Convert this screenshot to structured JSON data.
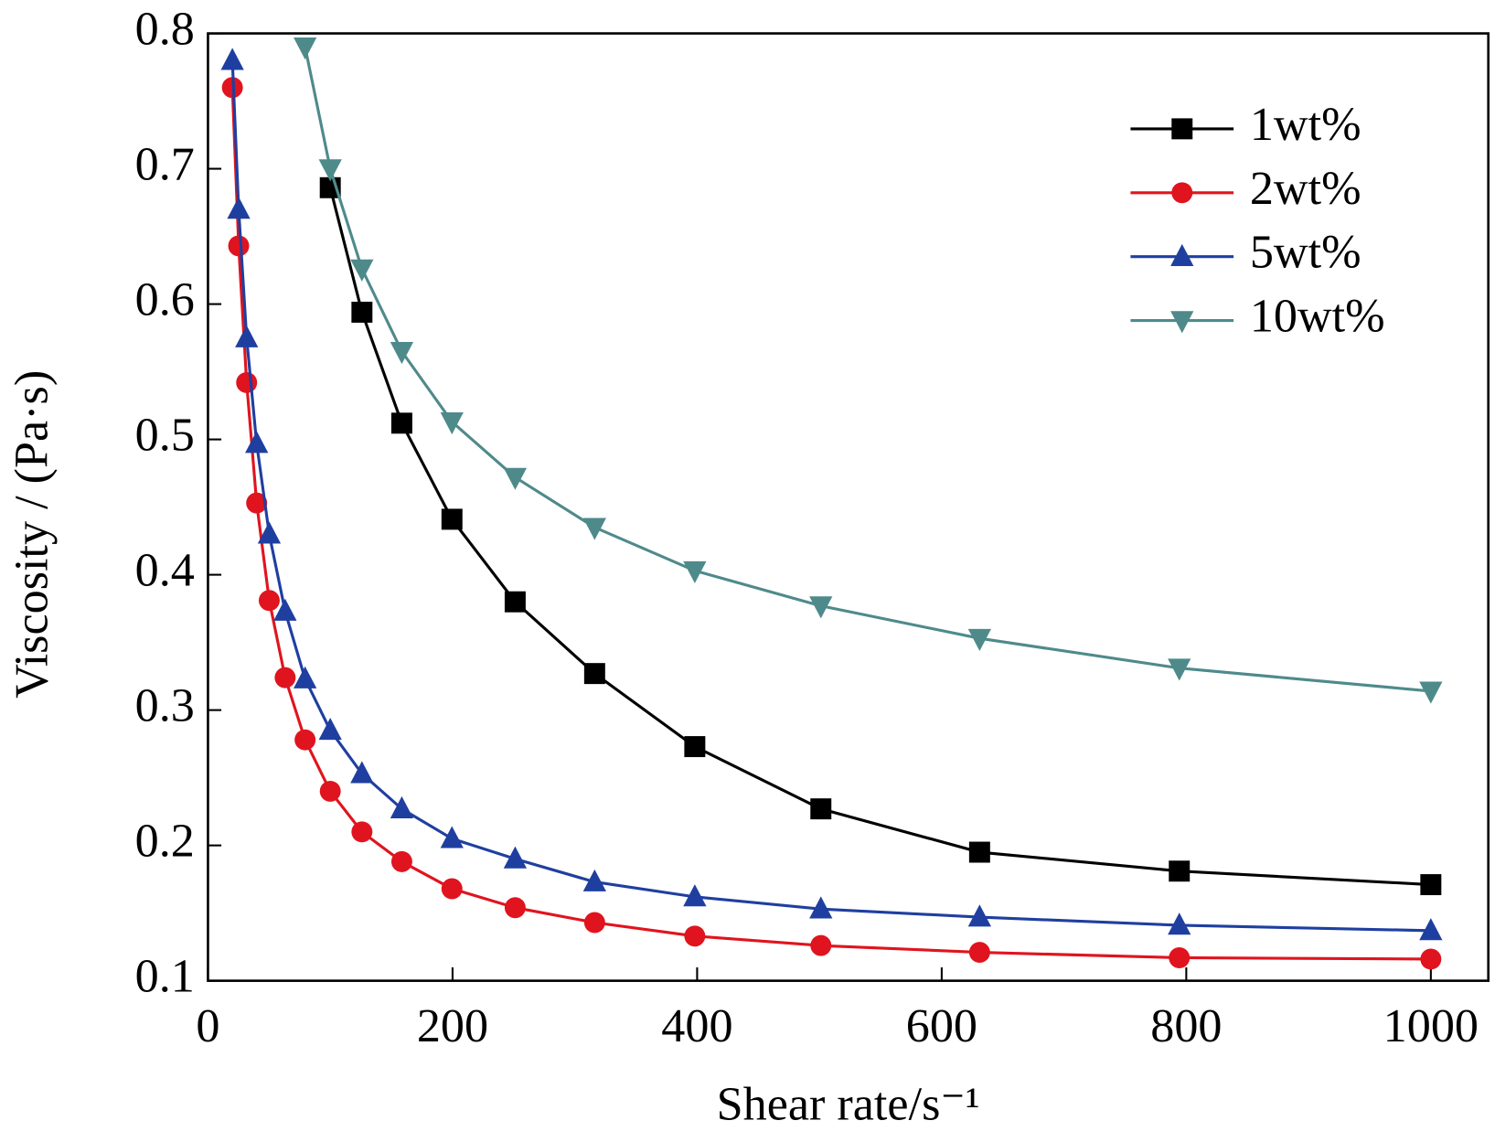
{
  "chart_data": {
    "type": "line",
    "x_label": "Shear rate/s⁻¹",
    "y_label": "Viscosity / (Pa·s)",
    "x": [
      19.95,
      25.1,
      31.6,
      39.8,
      50.1,
      63.1,
      79.4,
      100,
      125.9,
      158.5,
      199.5,
      251.2,
      316.2,
      398.1,
      501.2,
      631,
      794.3,
      1000
    ],
    "series": [
      {
        "name": "1wt%",
        "color": "#000000",
        "marker": "square",
        "values": [
          null,
          null,
          null,
          null,
          null,
          null,
          null,
          0.686,
          0.594,
          0.512,
          0.441,
          0.38,
          0.327,
          0.273,
          0.227,
          0.195,
          0.181,
          0.171
        ]
      },
      {
        "name": "2wt%",
        "color": "#e0141e",
        "marker": "circle",
        "values": [
          0.76,
          0.643,
          0.542,
          0.453,
          0.381,
          0.324,
          0.278,
          0.24,
          0.21,
          0.188,
          0.168,
          0.154,
          0.143,
          0.133,
          0.126,
          0.121,
          0.117,
          0.116
        ]
      },
      {
        "name": "5wt%",
        "color": "#1f3fa0",
        "marker": "triangle-up",
        "values": [
          0.78,
          0.67,
          0.575,
          0.497,
          0.43,
          0.373,
          0.323,
          0.285,
          0.253,
          0.227,
          0.205,
          0.19,
          0.173,
          0.162,
          0.153,
          0.147,
          0.141,
          0.137
        ]
      },
      {
        "name": "10wt%",
        "color": "#4f8a8b",
        "marker": "triangle-down",
        "values": [
          null,
          null,
          null,
          null,
          null,
          null,
          0.79,
          0.7,
          0.626,
          0.565,
          0.513,
          0.472,
          0.435,
          0.403,
          0.377,
          0.353,
          0.331,
          0.314
        ]
      }
    ],
    "xlim": [
      0,
      1047
    ],
    "xticks": [
      0,
      200,
      400,
      600,
      800,
      1000
    ],
    "ylim": [
      0.1,
      0.8
    ],
    "yticks": [
      0.1,
      0.2,
      0.3,
      0.4,
      0.5,
      0.6,
      0.7,
      0.8
    ],
    "legend": "upper right",
    "grid": false
  }
}
